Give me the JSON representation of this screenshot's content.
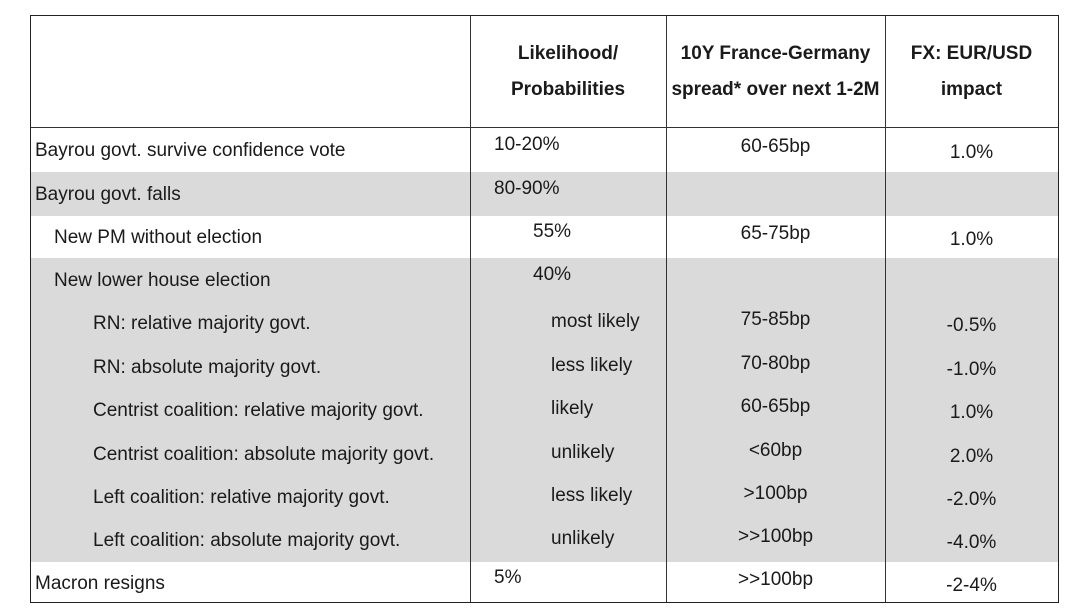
{
  "header": {
    "col1": "",
    "col2": "Likelihood/\nProbabilities",
    "col3": "10Y France-Germany\nspread* over next 1-2M",
    "col4": "FX: EUR/USD\nimpact"
  },
  "rows": [
    {
      "label": "Bayrou govt. survive confidence vote",
      "likelihood": "10-20%",
      "spread": "60-65bp",
      "fx": "1.0%",
      "indent": 0,
      "gray": false
    },
    {
      "label": "Bayrou govt. falls",
      "likelihood": "80-90%",
      "spread": "",
      "fx": "",
      "indent": 0,
      "gray": true
    },
    {
      "label": "New PM without election",
      "likelihood": "55%",
      "spread": "65-75bp",
      "fx": "1.0%",
      "indent": 1,
      "gray": false
    },
    {
      "label": "New lower house election",
      "likelihood": "40%",
      "spread": "",
      "fx": "",
      "indent": 1,
      "gray": true
    },
    {
      "label": "RN: relative majority govt.",
      "likelihood": "most likely",
      "spread": "75-85bp",
      "fx": "-0.5%",
      "indent": 2,
      "gray": true
    },
    {
      "label": "RN: absolute majority govt.",
      "likelihood": "less likely",
      "spread": "70-80bp",
      "fx": "-1.0%",
      "indent": 2,
      "gray": true
    },
    {
      "label": "Centrist coalition: relative majority govt.",
      "likelihood": "likely",
      "spread": "60-65bp",
      "fx": "1.0%",
      "indent": 2,
      "gray": true
    },
    {
      "label": "Centrist coalition: absolute majority govt.",
      "likelihood": "unlikely",
      "spread": "<60bp",
      "fx": "2.0%",
      "indent": 2,
      "gray": true
    },
    {
      "label": "Left coalition: relative majority govt.",
      "likelihood": "less likely",
      "spread": ">100bp",
      "fx": "-2.0%",
      "indent": 2,
      "gray": true
    },
    {
      "label": "Left coalition: absolute majority govt.",
      "likelihood": "unlikely",
      "spread": ">>100bp",
      "fx": "-4.0%",
      "indent": 2,
      "gray": true
    },
    {
      "label": "Macron resigns",
      "likelihood": "5%",
      "spread": ">>100bp",
      "fx": "-2-4%",
      "indent": 0,
      "gray": false
    }
  ]
}
